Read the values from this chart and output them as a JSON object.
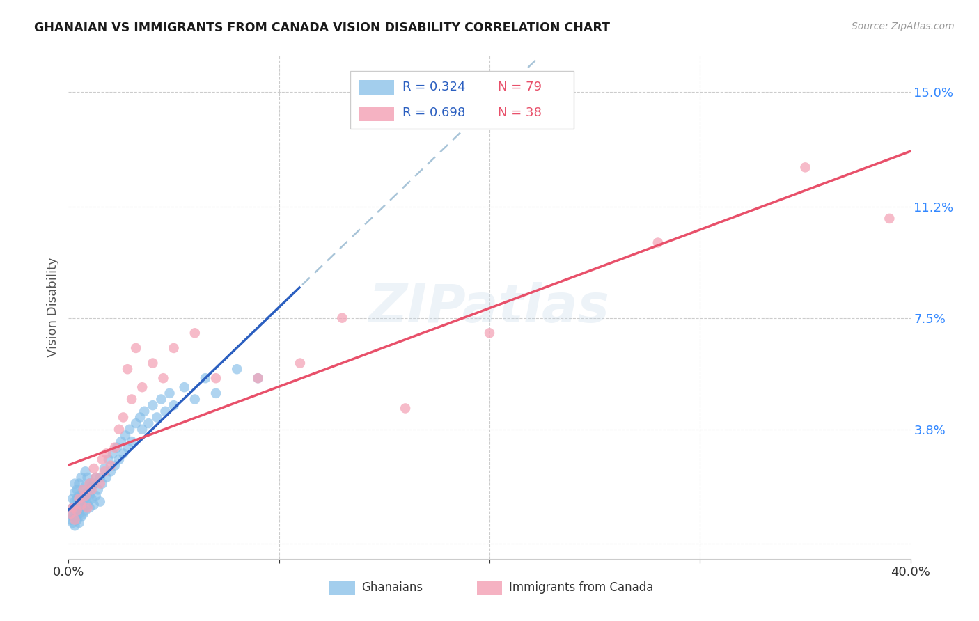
{
  "title": "GHANAIAN VS IMMIGRANTS FROM CANADA VISION DISABILITY CORRELATION CHART",
  "source": "Source: ZipAtlas.com",
  "ylabel": "Vision Disability",
  "xlim": [
    0.0,
    0.4
  ],
  "ylim": [
    -0.005,
    0.162
  ],
  "yticks": [
    0.0,
    0.038,
    0.075,
    0.112,
    0.15
  ],
  "ytick_labels": [
    "",
    "3.8%",
    "7.5%",
    "11.2%",
    "15.0%"
  ],
  "xticks": [
    0.0,
    0.1,
    0.2,
    0.3,
    0.4
  ],
  "xtick_labels": [
    "0.0%",
    "",
    "",
    "",
    "40.0%"
  ],
  "watermark": "ZIPatlas",
  "ghanaian_color": "#85BEE8",
  "immigrant_color": "#F4A5B8",
  "line1_color": "#2B5FC0",
  "line2_color": "#E8506A",
  "dashed_line_color": "#A8C4D8",
  "ghanaians_x": [
    0.001,
    0.001,
    0.002,
    0.002,
    0.002,
    0.002,
    0.003,
    0.003,
    0.003,
    0.003,
    0.003,
    0.003,
    0.004,
    0.004,
    0.004,
    0.004,
    0.005,
    0.005,
    0.005,
    0.005,
    0.005,
    0.006,
    0.006,
    0.006,
    0.006,
    0.007,
    0.007,
    0.007,
    0.008,
    0.008,
    0.008,
    0.008,
    0.009,
    0.009,
    0.009,
    0.01,
    0.01,
    0.01,
    0.011,
    0.011,
    0.012,
    0.012,
    0.013,
    0.013,
    0.014,
    0.015,
    0.015,
    0.016,
    0.017,
    0.018,
    0.019,
    0.02,
    0.021,
    0.022,
    0.023,
    0.024,
    0.025,
    0.026,
    0.027,
    0.028,
    0.029,
    0.03,
    0.032,
    0.034,
    0.035,
    0.036,
    0.038,
    0.04,
    0.042,
    0.044,
    0.046,
    0.048,
    0.05,
    0.055,
    0.06,
    0.065,
    0.07,
    0.08,
    0.09
  ],
  "ghanaians_y": [
    0.008,
    0.01,
    0.007,
    0.009,
    0.012,
    0.015,
    0.006,
    0.009,
    0.011,
    0.014,
    0.017,
    0.02,
    0.008,
    0.011,
    0.015,
    0.018,
    0.007,
    0.01,
    0.013,
    0.016,
    0.02,
    0.009,
    0.012,
    0.016,
    0.022,
    0.01,
    0.014,
    0.018,
    0.011,
    0.015,
    0.019,
    0.024,
    0.013,
    0.017,
    0.022,
    0.012,
    0.016,
    0.02,
    0.015,
    0.019,
    0.013,
    0.02,
    0.016,
    0.022,
    0.018,
    0.014,
    0.022,
    0.02,
    0.025,
    0.022,
    0.028,
    0.024,
    0.03,
    0.026,
    0.032,
    0.028,
    0.034,
    0.03,
    0.036,
    0.032,
    0.038,
    0.034,
    0.04,
    0.042,
    0.038,
    0.044,
    0.04,
    0.046,
    0.042,
    0.048,
    0.044,
    0.05,
    0.046,
    0.052,
    0.048,
    0.055,
    0.05,
    0.058,
    0.055
  ],
  "immigrants_x": [
    0.001,
    0.002,
    0.003,
    0.004,
    0.005,
    0.006,
    0.007,
    0.008,
    0.009,
    0.01,
    0.011,
    0.012,
    0.013,
    0.015,
    0.016,
    0.017,
    0.018,
    0.02,
    0.022,
    0.024,
    0.026,
    0.028,
    0.03,
    0.032,
    0.035,
    0.04,
    0.045,
    0.05,
    0.06,
    0.07,
    0.09,
    0.11,
    0.13,
    0.16,
    0.2,
    0.28,
    0.35,
    0.39
  ],
  "immigrants_y": [
    0.01,
    0.012,
    0.008,
    0.011,
    0.015,
    0.013,
    0.018,
    0.016,
    0.012,
    0.02,
    0.018,
    0.025,
    0.022,
    0.02,
    0.028,
    0.024,
    0.03,
    0.026,
    0.032,
    0.038,
    0.042,
    0.058,
    0.048,
    0.065,
    0.052,
    0.06,
    0.055,
    0.065,
    0.07,
    0.055,
    0.055,
    0.06,
    0.075,
    0.045,
    0.07,
    0.1,
    0.125,
    0.108
  ],
  "blue_line_x_end": 0.11,
  "line1_slope": 0.32,
  "line1_intercept": 0.005,
  "line2_slope": 0.31,
  "line2_intercept": 0.005
}
